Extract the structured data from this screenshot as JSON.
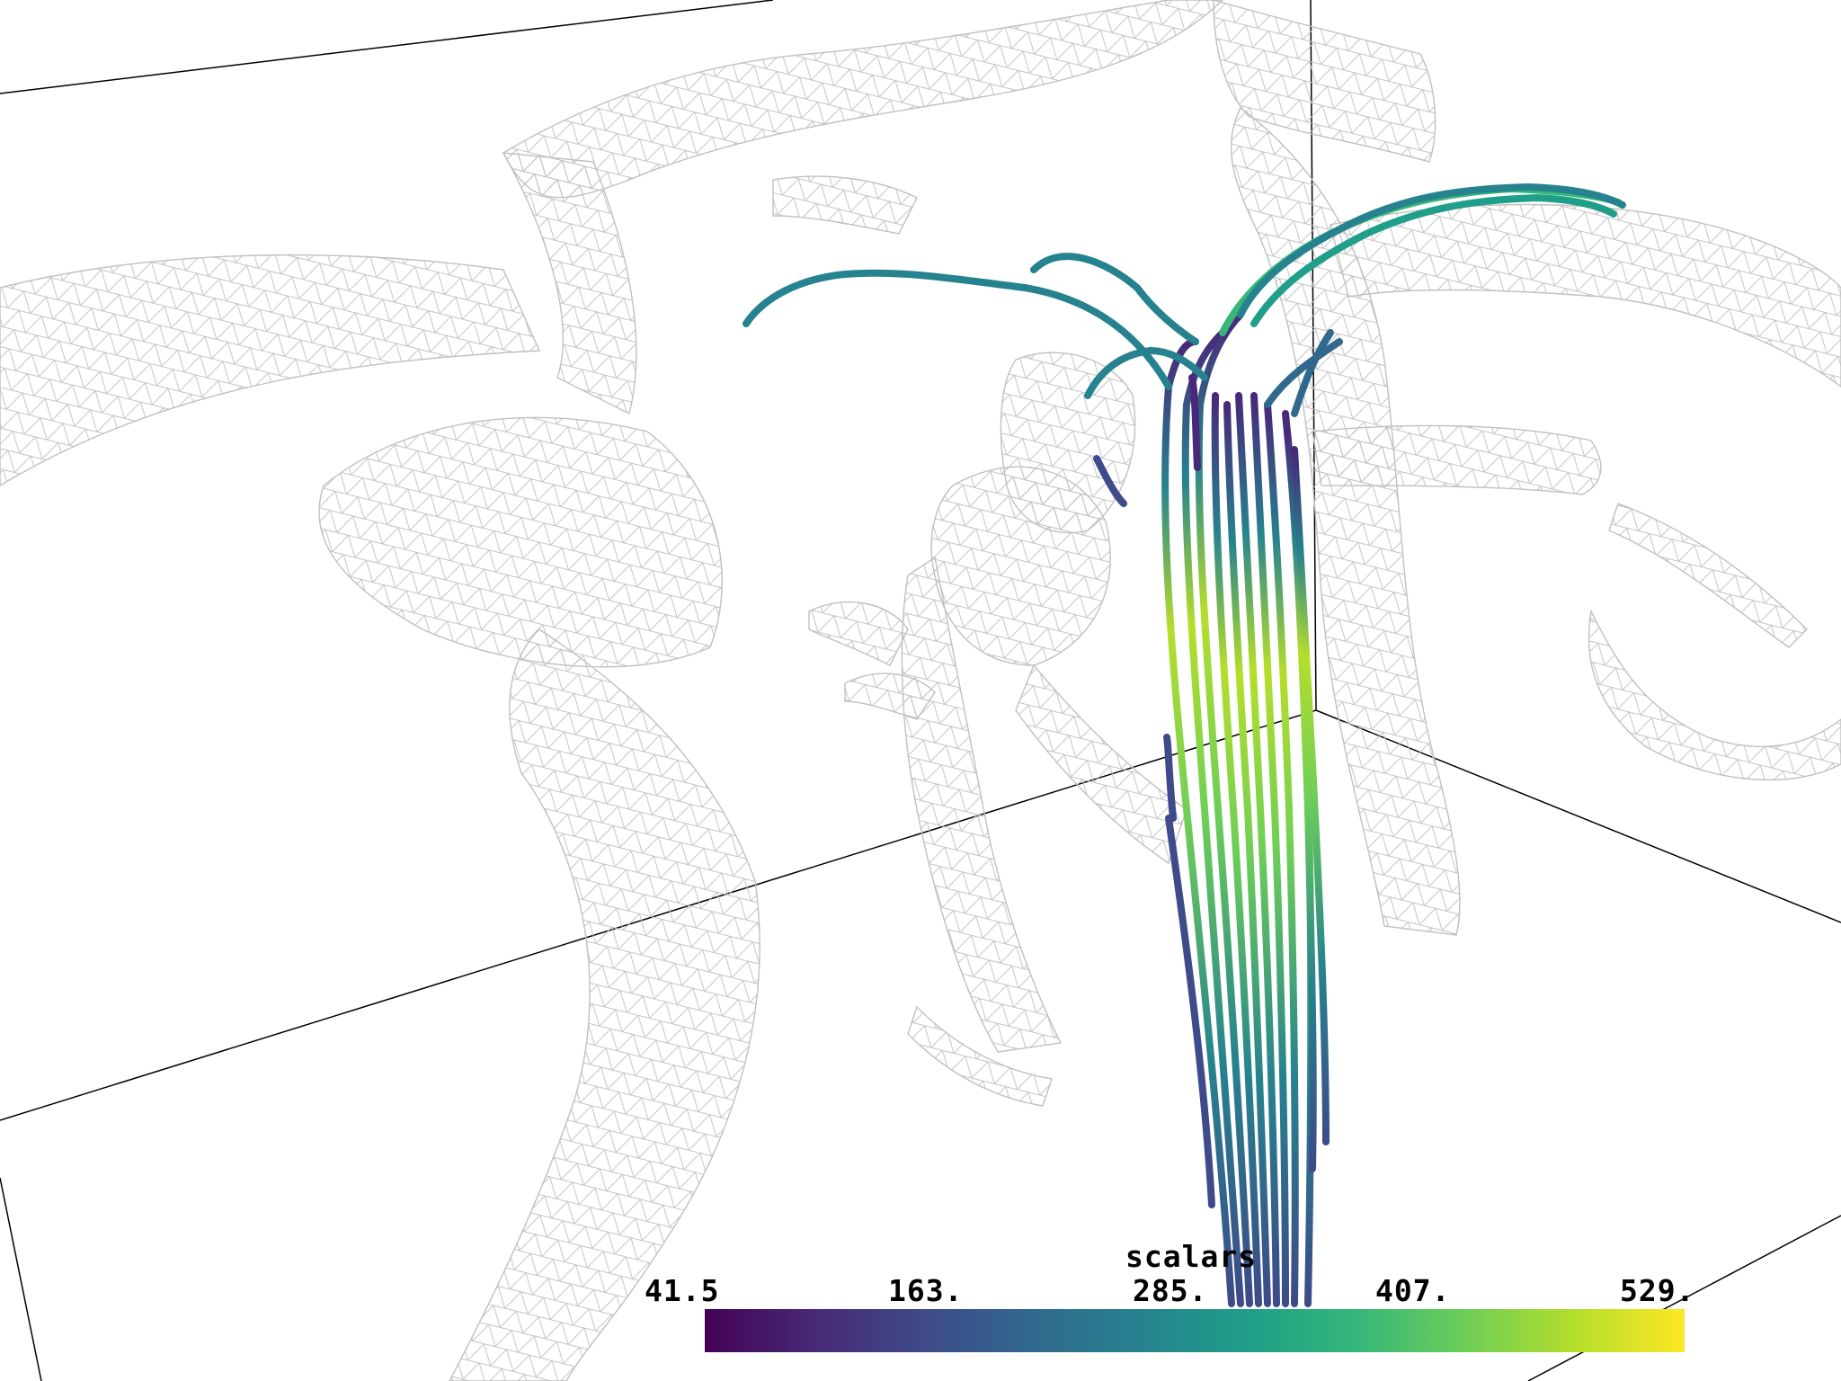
{
  "colorbar": {
    "title": "scalars",
    "ticks": [
      "41.5",
      "163.",
      "285.",
      "407.",
      "529."
    ],
    "range": [
      41.5,
      529
    ],
    "colormap": "viridis",
    "stops": [
      "#440154",
      "#482878",
      "#3e4a89",
      "#31688e",
      "#26828e",
      "#1f9e89",
      "#35b779",
      "#6ece58",
      "#b5de2b",
      "#fde725"
    ]
  },
  "scene": {
    "background": "#ffffff",
    "mesh_color": "#c8c8c8",
    "box_color": "#000000"
  },
  "streamlines_range": [
    41.5,
    529
  ]
}
